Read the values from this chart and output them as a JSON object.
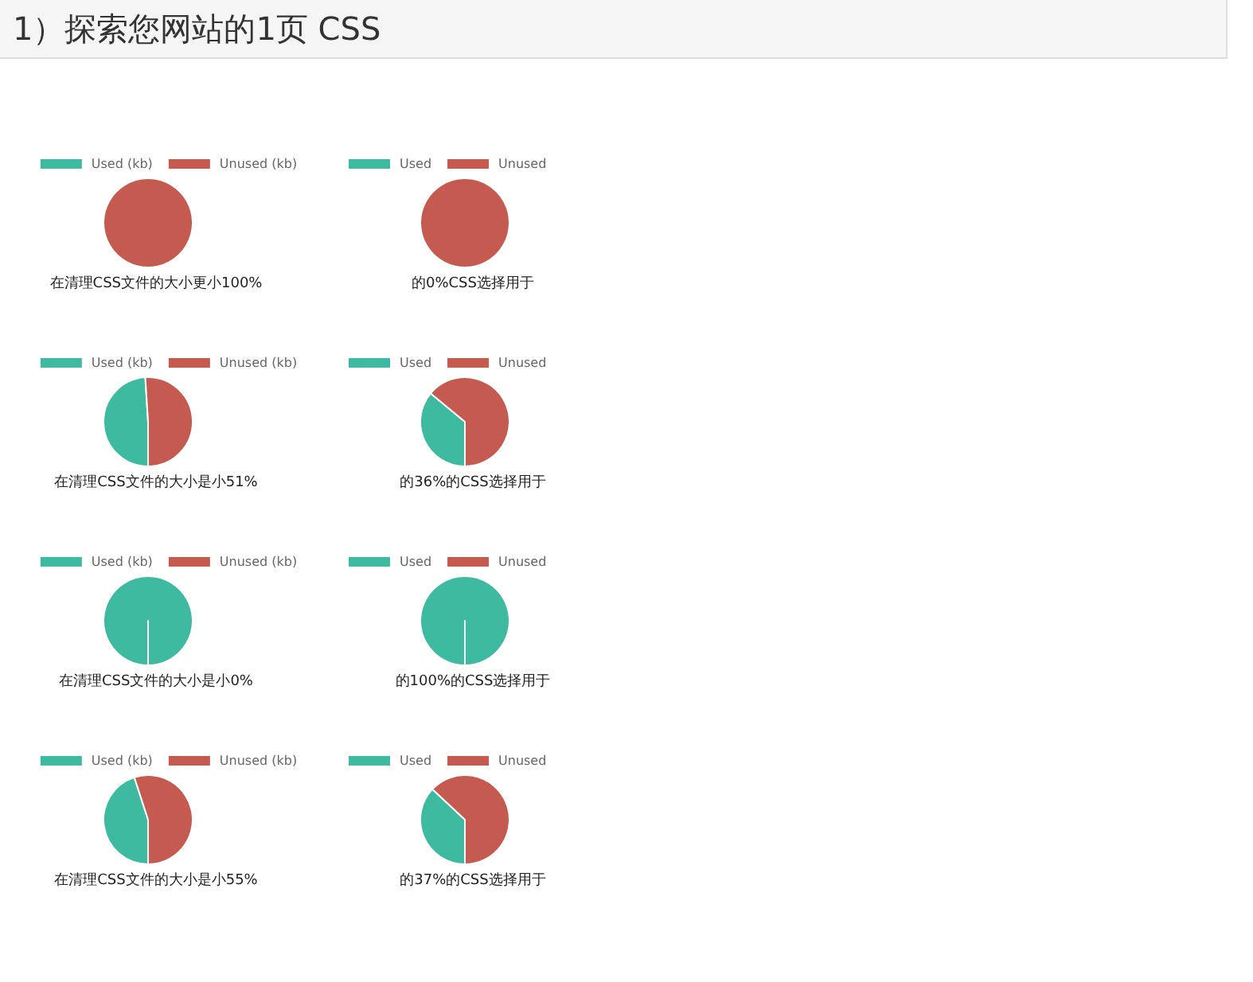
{
  "chart_data": [
    {
      "type": "other",
      "title": "1）探索您网站的1页 CSS"
    },
    {
      "type": "pie",
      "xlabel": "在清理CSS文件的大小更小100%",
      "categories": [
        "Used (kb)",
        "Unused (kb)"
      ],
      "values": [
        0,
        100
      ],
      "colors": [
        "#3dba9f",
        "#c55a51"
      ],
      "legend": "top"
    },
    {
      "type": "pie",
      "xlabel": "的0%CSS选择用于",
      "categories": [
        "Used",
        "Unused"
      ],
      "values": [
        0,
        100
      ],
      "colors": [
        "#3dba9f",
        "#c55a51"
      ],
      "legend": "top left"
    },
    {
      "type": "pie",
      "xlabel": "在清理CSS文件的大小是小51%",
      "categories": [
        "Used (kb)",
        "Unused (kb)"
      ],
      "values": [
        49,
        51
      ],
      "colors": [
        "#3dba9f",
        "#c55a51"
      ],
      "legend": "top"
    },
    {
      "type": "pie",
      "xlabel": "的36%的CSS选择用于",
      "categories": [
        "Used",
        "Unused"
      ],
      "values": [
        36,
        64
      ],
      "colors": [
        "#3dba9f",
        "#c55a51"
      ],
      "legend": "top left"
    },
    {
      "type": "pie",
      "xlabel": "在清理CSS文件的大小是小0%",
      "categories": [
        "Used (kb)",
        "Unused (kb)"
      ],
      "values": [
        100,
        0
      ],
      "colors": [
        "#3dba9f",
        "#c55a51"
      ],
      "legend": "top"
    },
    {
      "type": "pie",
      "xlabel": "的100%的CSS选择用于",
      "categories": [
        "Used",
        "Unused"
      ],
      "values": [
        100,
        0
      ],
      "colors": [
        "#3dba9f",
        "#c55a51"
      ],
      "legend": "top left"
    },
    {
      "type": "pie",
      "xlabel": "在清理CSS文件的大小是小55%",
      "categories": [
        "Used (kb)",
        "Unused (kb)"
      ],
      "values": [
        45,
        55
      ],
      "colors": [
        "#3dba9f",
        "#c55a51"
      ],
      "legend": "top"
    },
    {
      "type": "pie",
      "xlabel": "的37%的CSS选择用于",
      "categories": [
        "Used",
        "Unused"
      ],
      "values": [
        37,
        63
      ],
      "colors": [
        "#3dba9f",
        "#c55a51"
      ],
      "legend": "top left"
    }
  ]
}
